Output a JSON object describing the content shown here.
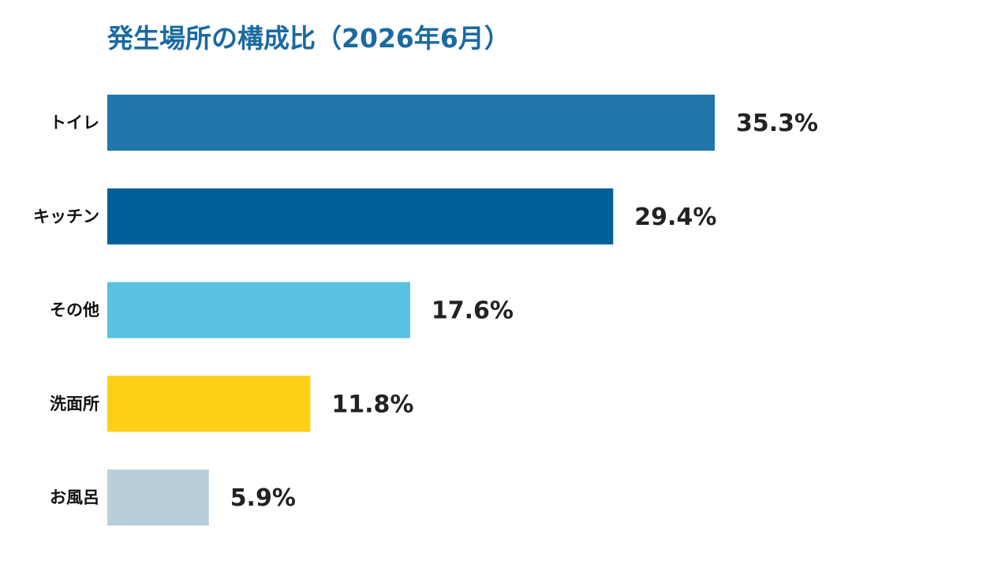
{
  "chart_data": {
    "type": "bar",
    "orientation": "horizontal",
    "title": "発生場所の構成比（2026年6月）",
    "categories": [
      "トイレ",
      "キッチン",
      "その他",
      "洗面所",
      "お風呂"
    ],
    "values": [
      35.3,
      29.4,
      17.6,
      11.8,
      5.9
    ],
    "value_labels": [
      "35.3%",
      "29.4%",
      "17.6%",
      "11.8%",
      "5.9%"
    ],
    "colors": [
      "#1f77ac",
      "#005f99",
      "#58c2e0",
      "#fdd017",
      "#b8ceda"
    ],
    "xlim": [
      0,
      50
    ],
    "grid": false,
    "legend": "none"
  }
}
